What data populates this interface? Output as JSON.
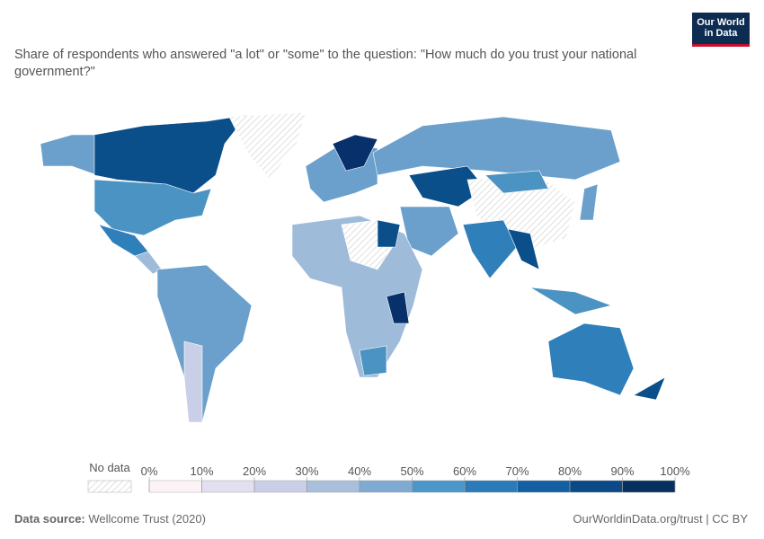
{
  "header": {
    "title": "Share of respondents who answered \"a lot\" or \"some\" to the question: \"How much do you trust your national government?\"",
    "logo": [
      "Our World",
      "in Data"
    ]
  },
  "legend": {
    "no_data": "No data",
    "ticks": [
      {
        "value": 0,
        "label": "0%"
      },
      {
        "value": 10,
        "label": "10%"
      },
      {
        "value": 20,
        "label": "20%"
      },
      {
        "value": 30,
        "label": "30%"
      },
      {
        "value": 40,
        "label": "40%"
      },
      {
        "value": 50,
        "label": "50%"
      },
      {
        "value": 60,
        "label": "60%"
      },
      {
        "value": 70,
        "label": "70%"
      },
      {
        "value": 80,
        "label": "80%"
      },
      {
        "value": 90,
        "label": "90%"
      },
      {
        "value": 100,
        "label": "100%"
      }
    ],
    "colors": [
      "#fdf3f6",
      "#e2e0f0",
      "#c9cfe6",
      "#a9bfdc",
      "#7faad2",
      "#4b97c9",
      "#2b7bb9",
      "#135fa2",
      "#0b4a86",
      "#08305f"
    ]
  },
  "footer": {
    "source_label": "Data source:",
    "source": "Wellcome Trust (2020)",
    "url": "OurWorldinData.org/trust | CC BY"
  }
}
